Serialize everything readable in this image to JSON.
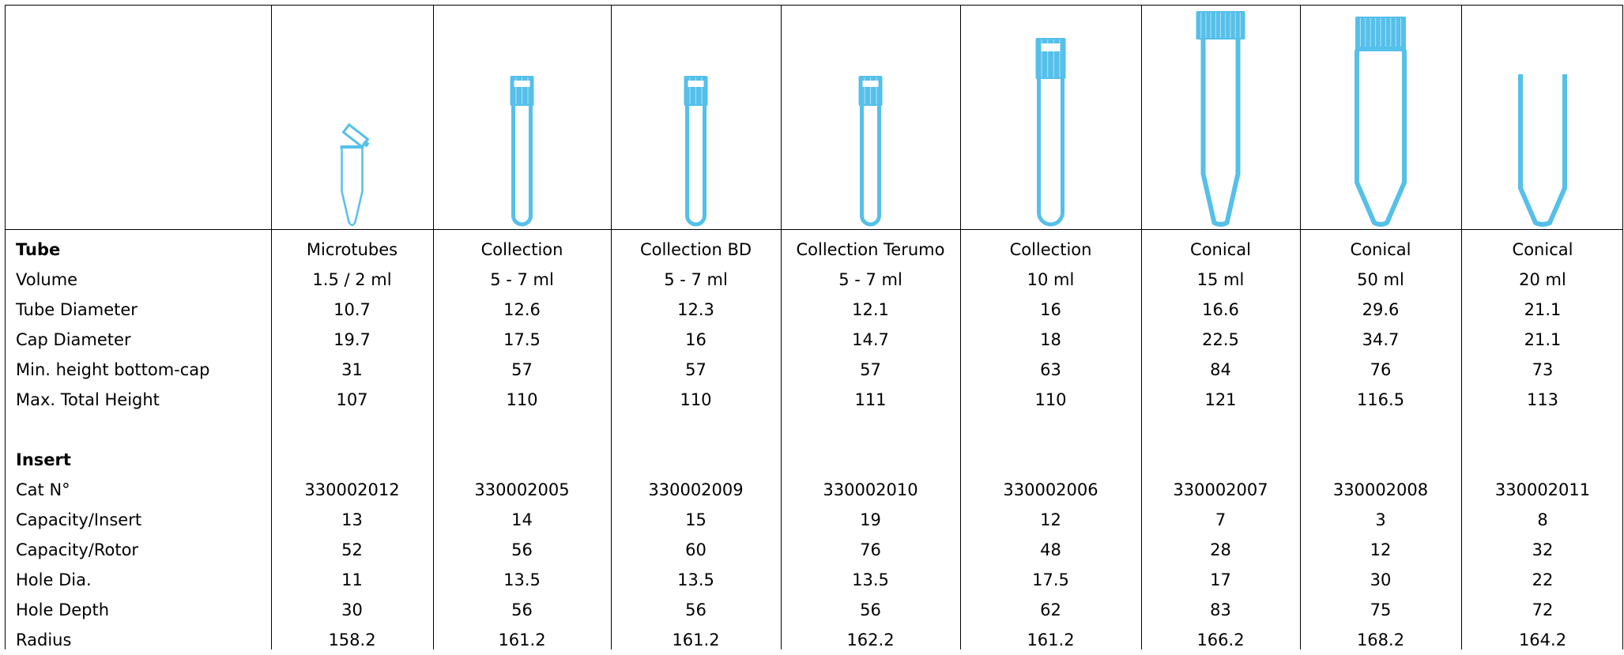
{
  "colors": {
    "tube": "#55c0ea",
    "border": "#000000"
  },
  "tube_icons": [
    "microtube-icon",
    "collection-tube-icon",
    "collection-bd-tube-icon",
    "collection-terumo-tube-icon",
    "collection-10ml-tube-icon",
    "conical-15ml-tube-icon",
    "conical-50ml-tube-icon",
    "conical-20ml-tube-icon"
  ],
  "rows": [
    {
      "label": "Tube",
      "bold": true,
      "values": [
        "Microtubes",
        "Collection",
        "Collection BD",
        "Collection Terumo",
        "Collection",
        "Conical",
        "Conical",
        "Conical"
      ]
    },
    {
      "label": "Volume",
      "values": [
        "1.5 / 2 ml",
        "5 - 7 ml",
        "5 - 7 ml",
        "5 - 7 ml",
        "10 ml",
        "15 ml",
        "50 ml",
        "20 ml"
      ]
    },
    {
      "label": "Tube Diameter",
      "values": [
        "10.7",
        "12.6",
        "12.3",
        "12.1",
        "16",
        "16.6",
        "29.6",
        "21.1"
      ]
    },
    {
      "label": "Cap Diameter",
      "values": [
        "19.7",
        "17.5",
        "16",
        "14.7",
        "18",
        "22.5",
        "34.7",
        "21.1"
      ]
    },
    {
      "label": "Min. height bottom-cap",
      "values": [
        "31",
        "57",
        "57",
        "57",
        "63",
        "84",
        "76",
        "73"
      ]
    },
    {
      "label": "Max. Total Height",
      "values": [
        "107",
        "110",
        "110",
        "111",
        "110",
        "121",
        "116.5",
        "113"
      ]
    },
    {
      "label": "",
      "values": [
        "",
        "",
        "",
        "",
        "",
        "",
        "",
        ""
      ]
    },
    {
      "label": "Insert",
      "bold": true,
      "values": [
        "",
        "",
        "",
        "",
        "",
        "",
        "",
        ""
      ]
    },
    {
      "label": "Cat N°",
      "values": [
        "330002012",
        "330002005",
        "330002009",
        "330002010",
        "330002006",
        "330002007",
        "330002008",
        "330002011"
      ]
    },
    {
      "label": "Capacity/Insert",
      "values": [
        "13",
        "14",
        "15",
        "19",
        "12",
        "7",
        "3",
        "8"
      ]
    },
    {
      "label": "Capacity/Rotor",
      "values": [
        "52",
        "56",
        "60",
        "76",
        "48",
        "28",
        "12",
        "32"
      ]
    },
    {
      "label": "Hole Dia.",
      "values": [
        "11",
        "13.5",
        "13.5",
        "13.5",
        "17.5",
        "17",
        "30",
        "22"
      ]
    },
    {
      "label": "Hole Depth",
      "values": [
        "30",
        "56",
        "56",
        "56",
        "62",
        "83",
        "75",
        "72"
      ]
    },
    {
      "label": "Radius",
      "values": [
        "158.2",
        "161.2",
        "161.2",
        "162.2",
        "161.2",
        "166.2",
        "168.2",
        "164.2"
      ]
    }
  ]
}
